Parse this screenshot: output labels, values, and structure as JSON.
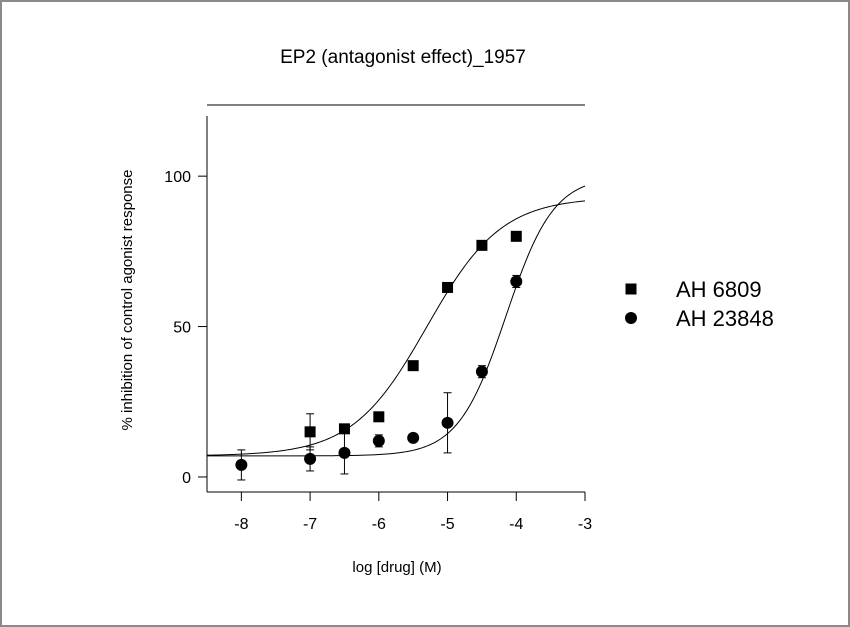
{
  "chart_data": {
    "type": "scatter",
    "title": "EP2 (antagonist effect)_1957",
    "xlabel": "log [drug] (M)",
    "ylabel": "% inhibition of control agonist response",
    "xlim": [
      -8.5,
      -3
    ],
    "ylim": [
      -5,
      120
    ],
    "x_ticks": [
      -8,
      -7,
      -6,
      -5,
      -4,
      -3
    ],
    "y_ticks": [
      0,
      50,
      100
    ],
    "x_tick_labels": [
      "-8",
      "-7",
      "-6",
      "-5",
      "-4",
      "-3"
    ],
    "y_tick_labels": [
      "0",
      "50",
      "100"
    ],
    "grid": false,
    "legend_position": "right",
    "series": [
      {
        "name": "AH 6809",
        "marker": "square",
        "color": "#000000",
        "points": [
          {
            "x": -7.0,
            "y": 15,
            "err": 6
          },
          {
            "x": -6.5,
            "y": 16,
            "err": 0
          },
          {
            "x": -6.0,
            "y": 20,
            "err": 0
          },
          {
            "x": -5.5,
            "y": 37,
            "err": 0
          },
          {
            "x": -5.0,
            "y": 63,
            "err": 0
          },
          {
            "x": -4.5,
            "y": 77,
            "err": 0
          },
          {
            "x": -4.0,
            "y": 80,
            "err": 0
          }
        ],
        "fit": {
          "bottom": 7,
          "top": 93,
          "logEC50": -5.3,
          "hill": 0.8
        }
      },
      {
        "name": "AH 23848",
        "marker": "circle",
        "color": "#000000",
        "points": [
          {
            "x": -8.0,
            "y": 4,
            "err": 5
          },
          {
            "x": -7.0,
            "y": 6,
            "err": 4
          },
          {
            "x": -6.5,
            "y": 8,
            "err": 7
          },
          {
            "x": -6.0,
            "y": 12,
            "err": 2
          },
          {
            "x": -5.5,
            "y": 13,
            "err": 0
          },
          {
            "x": -5.0,
            "y": 18,
            "err": 10
          },
          {
            "x": -4.5,
            "y": 35,
            "err": 2
          },
          {
            "x": -4.0,
            "y": 65,
            "err": 2
          }
        ],
        "fit": {
          "bottom": 7,
          "top": 100,
          "logEC50": -4.15,
          "hill": 1.25
        }
      }
    ]
  }
}
